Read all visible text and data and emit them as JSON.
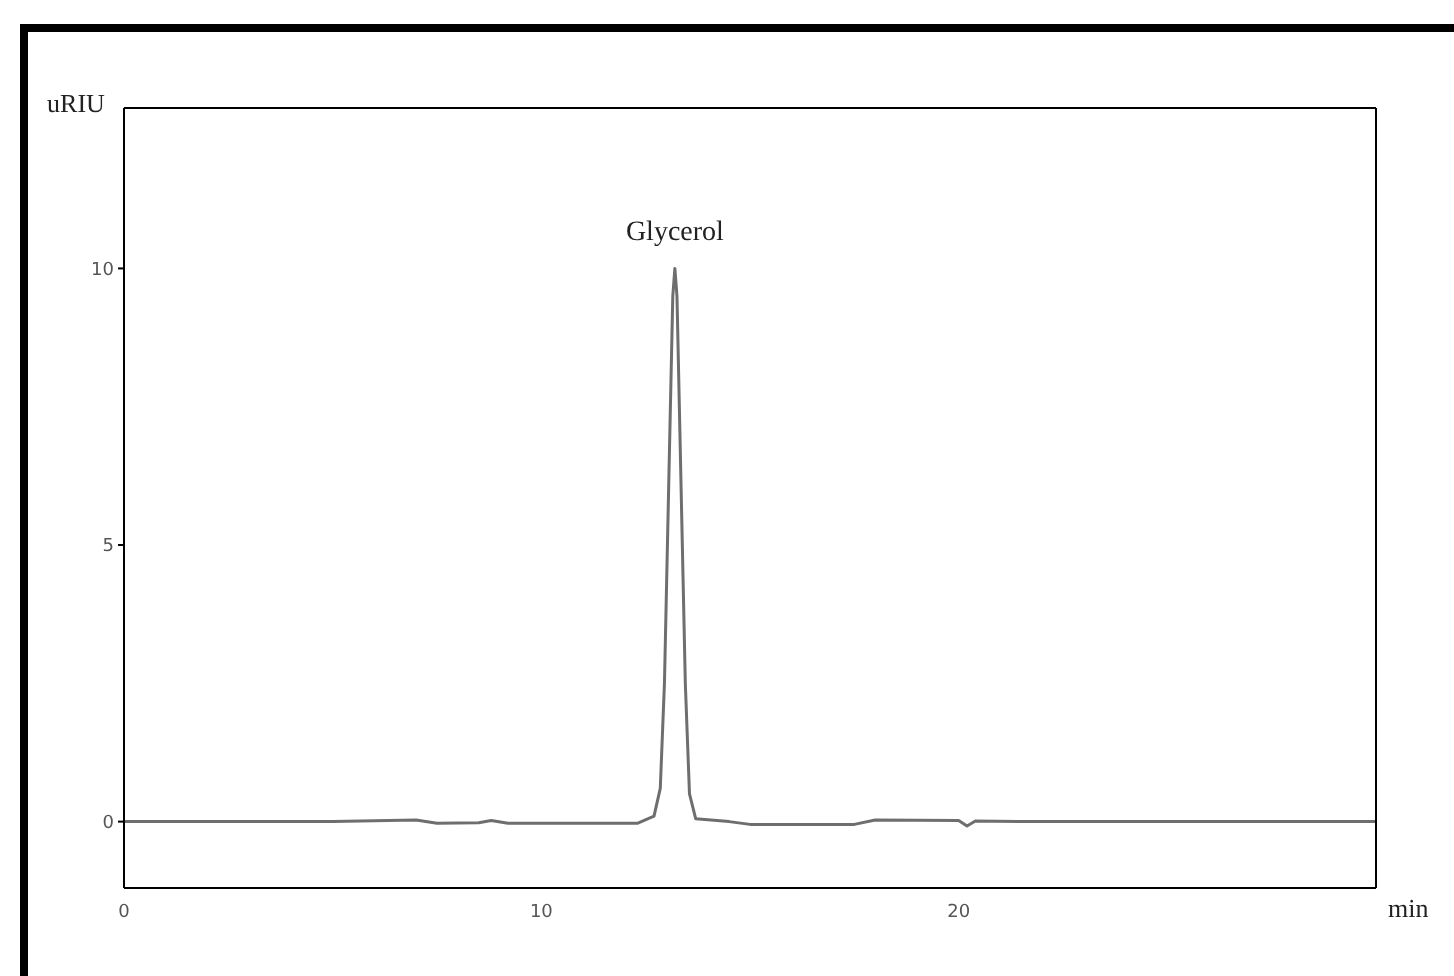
{
  "chart_data": {
    "type": "line",
    "xlabel": "min",
    "ylabel": "uRIU",
    "annotations": [
      {
        "text": "Glycerol",
        "x": 13.2,
        "y": 10
      }
    ],
    "x": [
      0,
      5,
      7,
      7.5,
      8.5,
      8.8,
      9.2,
      12.3,
      12.7,
      12.85,
      12.95,
      13.05,
      13.15,
      13.2,
      13.25,
      13.35,
      13.45,
      13.55,
      13.7,
      14.5,
      15,
      17.5,
      18,
      20,
      20.2,
      20.4,
      22,
      30
    ],
    "values": [
      0,
      0,
      0.03,
      -0.03,
      -0.02,
      0.02,
      -0.03,
      -0.03,
      0.1,
      0.6,
      2.5,
      6,
      9.5,
      10,
      9.5,
      6,
      2.5,
      0.5,
      0.05,
      0,
      -0.05,
      -0.05,
      0.03,
      0.02,
      -0.08,
      0.01,
      0,
      0
    ],
    "color": "#6e6e6e",
    "marker": "none",
    "line_style": "solid",
    "xlim": [
      0,
      30
    ],
    "ylim": [
      -1.2,
      12.9
    ],
    "xticks": [
      0,
      10,
      20
    ],
    "yticks": [
      0,
      5,
      10
    ]
  }
}
